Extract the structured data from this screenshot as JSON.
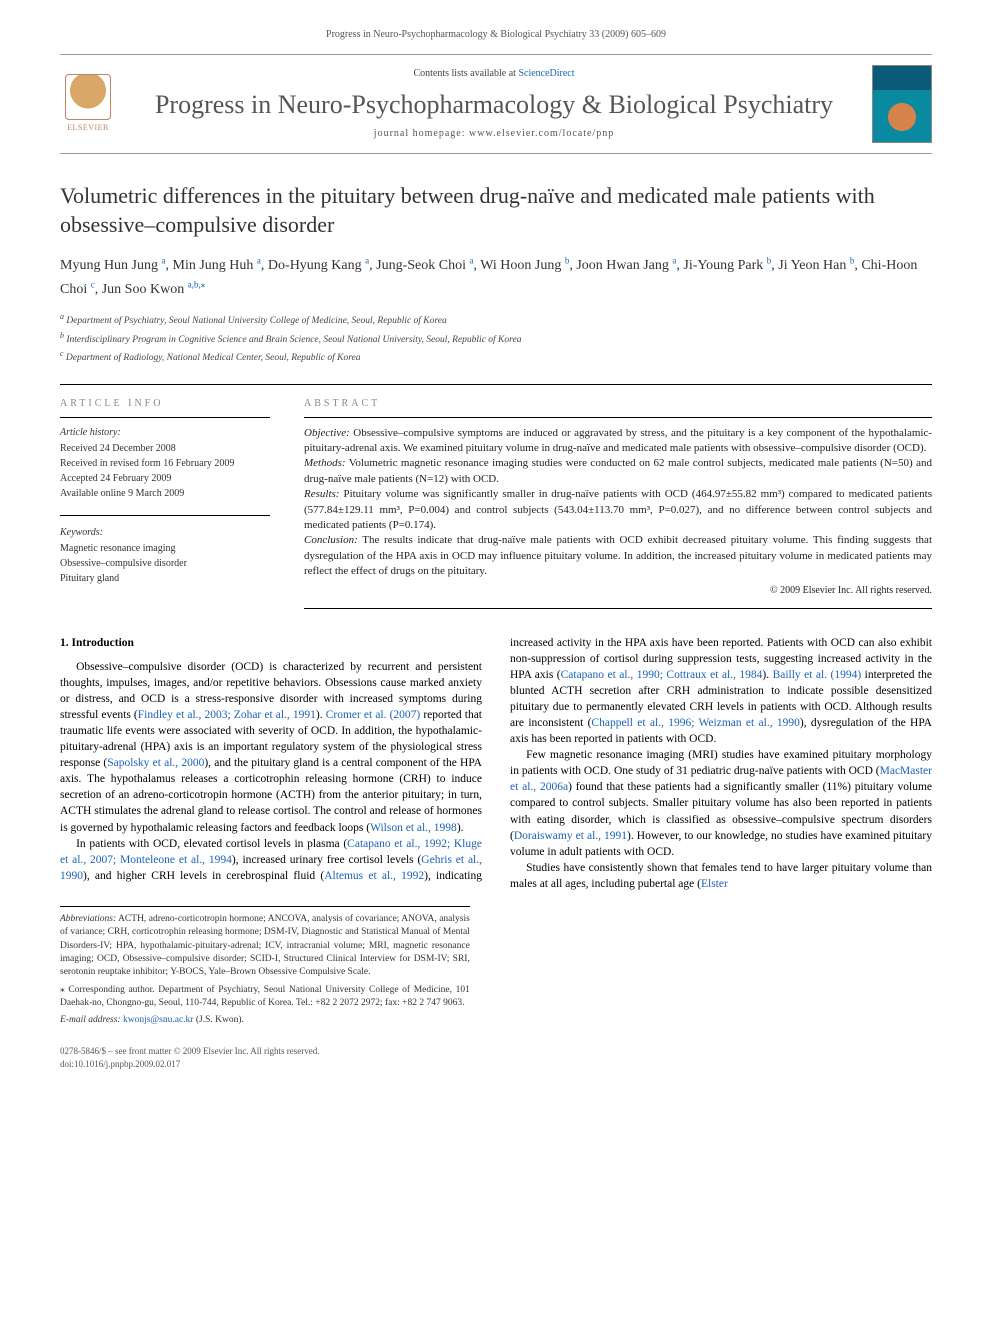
{
  "header": {
    "running": "Progress in Neuro-Psychopharmacology & Biological Psychiatry 33 (2009) 605–609",
    "contents_prefix": "Contents lists available at ",
    "contents_link": "ScienceDirect",
    "journal": "Progress in Neuro-Psychopharmacology & Biological Psychiatry",
    "homepage_prefix": "journal homepage: ",
    "homepage": "www.elsevier.com/locate/pnp",
    "elsevier": "ELSEVIER"
  },
  "title": "Volumetric differences in the pituitary between drug-naïve and medicated male patients with obsessive–compulsive disorder",
  "authors_html": "Myung Hun Jung <sup>a</sup>, Min Jung Huh <sup>a</sup>, Do-Hyung Kang <sup>a</sup>, Jung-Seok Choi <sup>a</sup>, Wi Hoon Jung <sup>b</sup>, Joon Hwan Jang <sup>a</sup>, Ji-Young Park <sup>b</sup>, Ji Yeon Han <sup>b</sup>, Chi-Hoon Choi <sup>c</sup>, Jun Soo Kwon <sup>a,b,</sup>",
  "affiliations": {
    "a": "Department of Psychiatry, Seoul National University College of Medicine, Seoul, Republic of Korea",
    "b": "Interdisciplinary Program in Cognitive Science and Brain Science, Seoul National University, Seoul, Republic of Korea",
    "c": "Department of Radiology, National Medical Center, Seoul, Republic of Korea"
  },
  "article_info": {
    "head": "ARTICLE INFO",
    "history_label": "Article history:",
    "history": [
      "Received 24 December 2008",
      "Received in revised form 16 February 2009",
      "Accepted 24 February 2009",
      "Available online 9 March 2009"
    ],
    "keywords_label": "Keywords:",
    "keywords": [
      "Magnetic resonance imaging",
      "Obsessive–compulsive disorder",
      "Pituitary gland"
    ]
  },
  "abstract": {
    "head": "ABSTRACT",
    "objective_label": "Objective:",
    "objective": " Obsessive–compulsive symptoms are induced or aggravated by stress, and the pituitary is a key component of the hypothalamic-pituitary-adrenal axis. We examined pituitary volume in drug-naïve and medicated male patients with obsessive–compulsive disorder (OCD).",
    "methods_label": "Methods:",
    "methods": " Volumetric magnetic resonance imaging studies were conducted on 62 male control subjects, medicated male patients (N=50) and drug-naïve male patients (N=12) with OCD.",
    "results_label": "Results:",
    "results": " Pituitary volume was significantly smaller in drug-naïve patients with OCD (464.97±55.82 mm³) compared to medicated patients (577.84±129.11 mm³, P=0.004) and control subjects (543.04±113.70 mm³, P=0.027), and no difference between control subjects and medicated patients (P=0.174).",
    "conclusion_label": "Conclusion:",
    "conclusion": " The results indicate that drug-naïve male patients with OCD exhibit decreased pituitary volume. This finding suggests that dysregulation of the HPA axis in OCD may influence pituitary volume. In addition, the increased pituitary volume in medicated patients may reflect the effect of drugs on the pituitary.",
    "copyright": "© 2009 Elsevier Inc. All rights reserved."
  },
  "section1": {
    "head": "1. Introduction",
    "p1a": "Obsessive–compulsive disorder (OCD) is characterized by recurrent and persistent thoughts, impulses, images, and/or repetitive behaviors. Obsessions cause marked anxiety or distress, and OCD is a stress-responsive disorder with increased symptoms during stressful events (",
    "p1r1": "Findley et al., 2003; Zohar et al., 1991",
    "p1b": "). ",
    "p1r2": "Cromer et al. (2007)",
    "p1c": " reported that traumatic life events were associated with severity of OCD. In addition, the hypothalamic-pituitary-adrenal (HPA) axis is an important regulatory system of the physiological stress response (",
    "p1r3": "Sapolsky et al., 2000",
    "p1d": "), and the pituitary gland is a central component of the HPA axis. The hypothalamus releases a corticotrophin releasing hormone (CRH) to induce secretion of an adreno-corticotropin hormone (ACTH) from the anterior pituitary; in turn, ACTH stimulates the adrenal gland to release cortisol. The control and release of hormones is governed by hypothalamic releasing factors and feedback loops (",
    "p1r4": "Wilson et al., 1998",
    "p1e": ").",
    "p2a": "In patients with OCD, elevated cortisol levels in plasma (",
    "p2r1": "Catapano et al., 1992; Kluge et al., 2007; Monteleone et al., 1994",
    "p2b": "), increased urinary free cortisol levels (",
    "p2r2": "Gehris et al., 1990",
    "p2c": "), and higher CRH levels in cerebrospinal fluid (",
    "p2r3": "Altemus et al., 1992",
    "p2d": "), indicating increased activity in the HPA axis have been reported. Patients with OCD can also exhibit non-suppression of cortisol during suppression tests, suggesting increased activity in the HPA axis (",
    "p2r4": "Catapano et al., 1990; Cottraux et al., 1984",
    "p2e": "). ",
    "p2r5": "Bailly et al. (1994)",
    "p2f": " interpreted the blunted ACTH secretion after CRH administration to indicate possible desensitized pituitary due to permanently elevated CRH levels in patients with OCD. Although results are inconsistent (",
    "p2r6": "Chappell et al., 1996; Weizman et al., 1990",
    "p2g": "), dysregulation of the HPA axis has been reported in patients with OCD.",
    "p3a": "Few magnetic resonance imaging (MRI) studies have examined pituitary morphology in patients with OCD. One study of 31 pediatric drug-naïve patients with OCD (",
    "p3r1": "MacMaster et al., 2006a",
    "p3b": ") found that these patients had a significantly smaller (11%) pituitary volume compared to control subjects. Smaller pituitary volume has also been reported in patients with eating disorder, which is classified as obsessive–compulsive spectrum disorders (",
    "p3r2": "Doraiswamy et al., 1991",
    "p3c": "). However, to our knowledge, no studies have examined pituitary volume in adult patients with OCD.",
    "p4a": "Studies have consistently shown that females tend to have larger pituitary volume than males at all ages, including pubertal age (",
    "p4r1": "Elster"
  },
  "footnotes": {
    "abbrev_label": "Abbreviations:",
    "abbrev": " ACTH, adreno-corticotropin hormone; ANCOVA, analysis of covariance; ANOVA, analysis of variance; CRH, corticotrophin releasing hormone; DSM-IV, Diagnostic and Statistical Manual of Mental Disorders-IV; HPA, hypothalamic-pituitary-adrenal; ICV, intracranial volume; MRI, magnetic resonance imaging; OCD, Obsessive–compulsive disorder; SCID-I, Structured Clinical Interview for DSM-IV; SRI, serotonin reuptake inhibitor; Y-BOCS, Yale–Brown Obsessive Compulsive Scale.",
    "corr_label": "⁎ ",
    "corr": "Corresponding author. Department of Psychiatry, Seoul National University College of Medicine, 101 Daehak-no, Chongno-gu, Seoul, 110-744, Republic of Korea. Tel.: +82 2 2072 2972; fax: +82 2 747 9063.",
    "email_label": "E-mail address: ",
    "email": "kwonjs@snu.ac.kr",
    "email_suffix": " (J.S. Kwon)."
  },
  "bottom": {
    "line1": "0278-5846/$ – see front matter © 2009 Elsevier Inc. All rights reserved.",
    "line2": "doi:10.1016/j.pnpbp.2009.02.017"
  },
  "colors": {
    "link": "#1b63b3",
    "text": "#000000",
    "muted": "#555555",
    "rule": "#000000"
  },
  "typography": {
    "body_pt": 11.5,
    "title_pt": 22,
    "journal_pt": 26,
    "abstract_pt": 11,
    "footnote_pt": 9.5
  }
}
